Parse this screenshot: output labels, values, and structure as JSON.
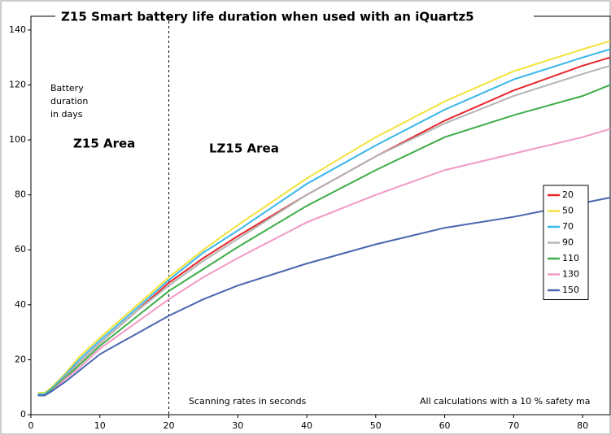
{
  "chart_data": {
    "type": "line",
    "title": "Z15 Smart battery life duration when used with an iQuartz5",
    "y_label": [
      "Battery",
      "duration",
      "in days"
    ],
    "annotations": [
      "Z15 Area",
      "LZ15 Area"
    ],
    "x_label": "Scanning rates in seconds",
    "note": "All calculations with a 10 % safety ma",
    "divider_x": 20,
    "x": [
      1,
      2,
      3,
      5,
      7,
      10,
      15,
      20,
      25,
      30,
      40,
      50,
      60,
      70,
      80,
      84
    ],
    "series": [
      {
        "name": "20",
        "color": "#e8262a",
        "values": [
          7,
          7,
          9,
          14,
          19,
          26,
          37,
          48,
          57,
          65,
          80,
          94,
          107,
          118,
          127,
          130
        ]
      },
      {
        "name": "50",
        "color": "#f2e23a",
        "values": [
          8,
          8,
          10,
          15,
          21,
          28,
          39,
          50,
          60,
          69,
          86,
          101,
          114,
          125,
          133,
          136
        ]
      },
      {
        "name": "70",
        "color": "#39b6ea",
        "values": [
          7.5,
          7.5,
          9.5,
          14.5,
          20,
          27,
          38,
          49,
          59,
          67,
          84,
          98,
          111,
          122,
          130,
          133
        ]
      },
      {
        "name": "90",
        "color": "#b4b4b4",
        "values": [
          7,
          7,
          9,
          14,
          19,
          26,
          37,
          47,
          56,
          64,
          80,
          94,
          106,
          116,
          124,
          127
        ]
      },
      {
        "name": "110",
        "color": "#3ead48",
        "values": [
          7,
          7,
          9,
          13.5,
          18,
          25,
          35,
          45,
          53,
          61,
          76,
          89,
          101,
          109,
          116,
          120
        ]
      },
      {
        "name": "130",
        "color": "#f29ac4",
        "values": [
          7,
          7,
          8.5,
          13,
          17,
          24,
          33,
          42,
          50,
          57,
          70,
          80,
          89,
          95,
          101,
          104
        ]
      },
      {
        "name": "150",
        "color": "#4a66b0",
        "values": [
          7,
          7,
          8.5,
          12,
          16,
          22,
          29,
          36,
          42,
          47,
          55,
          62,
          68,
          72,
          77,
          79
        ]
      }
    ],
    "xlim": [
      0,
      84
    ],
    "ylim": [
      0,
      145
    ],
    "xticks": [
      0,
      10,
      20,
      30,
      40,
      50,
      60,
      70,
      80
    ],
    "yticks": [
      0,
      20,
      40,
      60,
      80,
      100,
      120,
      140
    ]
  }
}
